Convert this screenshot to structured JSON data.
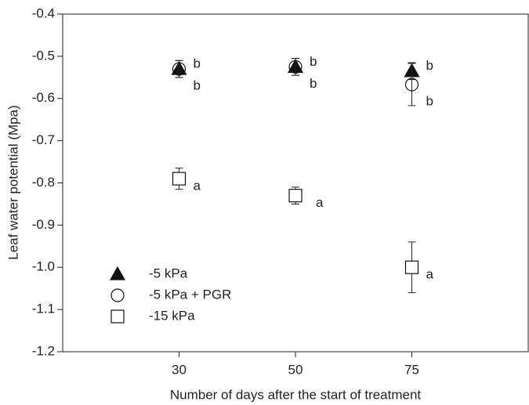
{
  "chart_data": {
    "type": "scatter",
    "xlabel": "Number of days after the start of treatment",
    "ylabel": "Leaf water potential (Mpa)",
    "categories": [
      "30",
      "50",
      "75"
    ],
    "ylim": [
      -1.2,
      -0.4
    ],
    "yticks": [
      -1.2,
      -1.1,
      {
        "value": -1.0,
        "label": "-1.0"
      },
      -0.9,
      -0.8,
      -0.7,
      -0.6,
      -0.5,
      -0.4
    ],
    "legend": "lower left",
    "series": [
      {
        "name": "-5 kPa",
        "marker": "triangle",
        "color": "#111111",
        "values": [
          -0.53,
          -0.525,
          -0.535
        ],
        "errors": [
          0.02,
          0.02,
          0.02
        ],
        "letters": [
          "b",
          "b",
          "b"
        ]
      },
      {
        "name": "-5 kPa + PGR",
        "marker": "circle",
        "color": "#111111",
        "values": [
          -0.53,
          -0.525,
          -0.567
        ],
        "errors": [
          0.02,
          0.02,
          0.05
        ],
        "letters": [
          "b",
          "b",
          "b"
        ]
      },
      {
        "name": "-15 kPa",
        "marker": "square",
        "color": "#111111",
        "values": [
          -0.79,
          -0.83,
          -1.0
        ],
        "errors": [
          0.025,
          0.02,
          0.06
        ],
        "letters": [
          "a",
          "a",
          "a"
        ]
      }
    ]
  }
}
